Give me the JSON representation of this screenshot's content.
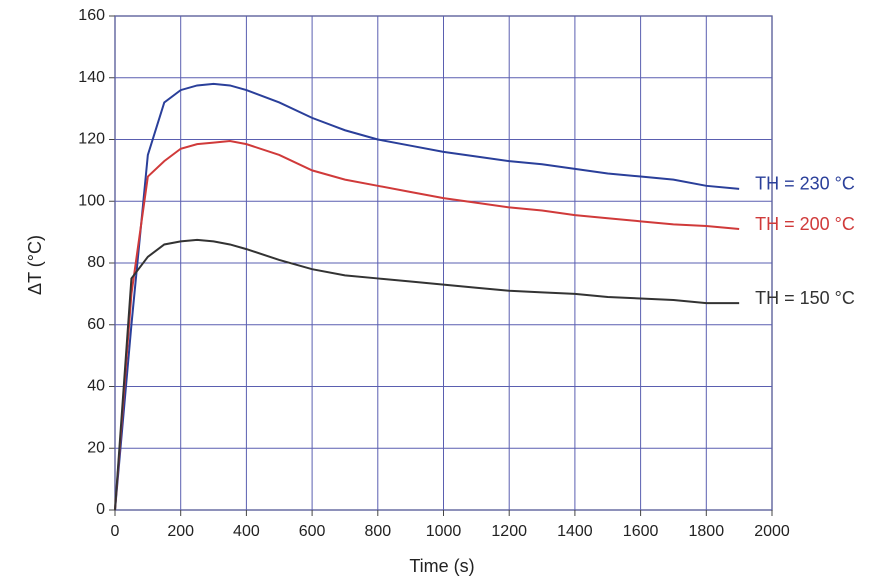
{
  "chart_data": {
    "type": "line",
    "x_label": "Time (s)",
    "y_label": "ΔT (°C)",
    "x": [
      0,
      50,
      100,
      150,
      200,
      250,
      300,
      350,
      400,
      500,
      600,
      700,
      800,
      900,
      1000,
      1100,
      1200,
      1300,
      1400,
      1500,
      1600,
      1700,
      1800,
      1900
    ],
    "series": [
      {
        "name": "TH = 230 °C",
        "color": "#2a3f9a",
        "values": [
          0,
          60,
          115,
          132,
          136,
          137.5,
          138,
          137.5,
          136,
          132,
          127,
          123,
          120,
          118,
          116,
          114.5,
          113,
          112,
          110.5,
          109,
          108,
          107,
          105,
          104
        ]
      },
      {
        "name": "TH = 200 °C",
        "color": "#d03a3a",
        "values": [
          0,
          70,
          108,
          113,
          117,
          118.5,
          119,
          119.5,
          118.5,
          115,
          110,
          107,
          105,
          103,
          101,
          99.5,
          98,
          97,
          95.5,
          94.5,
          93.5,
          92.5,
          92,
          91
        ]
      },
      {
        "name": "TH = 150 °C",
        "color": "#333333",
        "values": [
          0,
          75,
          82,
          86,
          87,
          87.5,
          87,
          86,
          84.5,
          81,
          78,
          76,
          75,
          74,
          73,
          72,
          71,
          70.5,
          70,
          69,
          68.5,
          68,
          67,
          67
        ]
      }
    ],
    "xlim": [
      0,
      2000
    ],
    "xticks": [
      0,
      200,
      400,
      600,
      800,
      1000,
      1200,
      1400,
      1600,
      1800,
      2000
    ],
    "ylim": [
      0,
      160
    ],
    "yticks": [
      0,
      20,
      40,
      60,
      80,
      100,
      120,
      140,
      160
    ],
    "grid": true
  }
}
